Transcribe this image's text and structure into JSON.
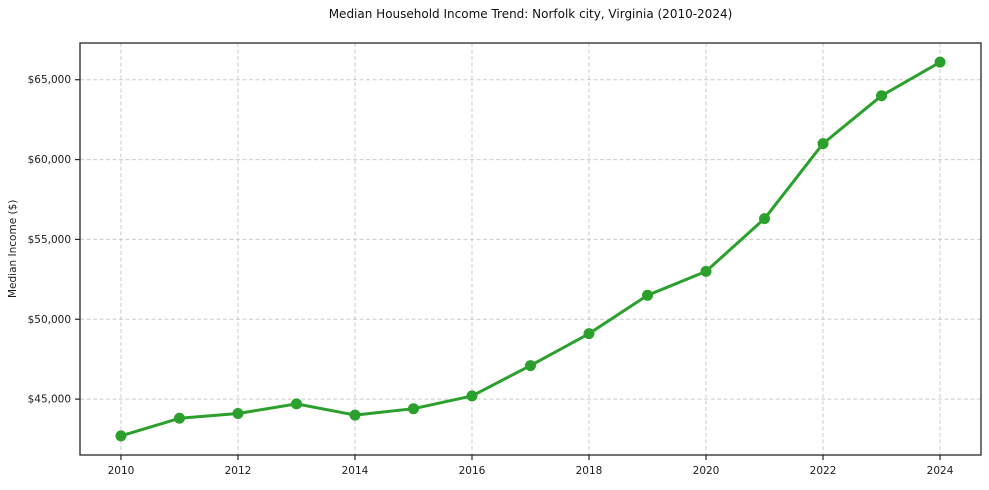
{
  "chart_data": {
    "type": "line",
    "title": "Median Household Income Trend: Norfolk city, Virginia (2010-2024)",
    "xlabel": "",
    "ylabel": "Median Income ($)",
    "series_name": "Median Household Income",
    "x": [
      2010,
      2011,
      2012,
      2013,
      2014,
      2015,
      2016,
      2017,
      2018,
      2019,
      2020,
      2021,
      2022,
      2023,
      2024
    ],
    "values": [
      42700,
      43800,
      44100,
      44700,
      44000,
      44400,
      45200,
      47100,
      49100,
      51500,
      53000,
      56300,
      61000,
      64000,
      66100
    ],
    "x_ticks": [
      2010,
      2012,
      2014,
      2016,
      2018,
      2020,
      2022,
      2024
    ],
    "x_tick_labels": [
      "2010",
      "2012",
      "2014",
      "2016",
      "2018",
      "2020",
      "2022",
      "2024"
    ],
    "y_ticks": [
      45000,
      50000,
      55000,
      60000,
      65000
    ],
    "y_tick_labels": [
      "$45,000",
      "$50,000",
      "$55,000",
      "$60,000",
      "$65,000"
    ],
    "xlim": [
      2009.3,
      2024.7
    ],
    "ylim": [
      41500,
      67300
    ],
    "grid": true,
    "grid_style": "dashed",
    "legend": "none",
    "line_color": "#2ca02c",
    "marker_color": "#2ca02c",
    "grid_color": "#cccccc",
    "spine_color": "#262626",
    "tick_color": "#262626",
    "text_color": "#1d1d1d",
    "background_color": "#ffffff"
  }
}
